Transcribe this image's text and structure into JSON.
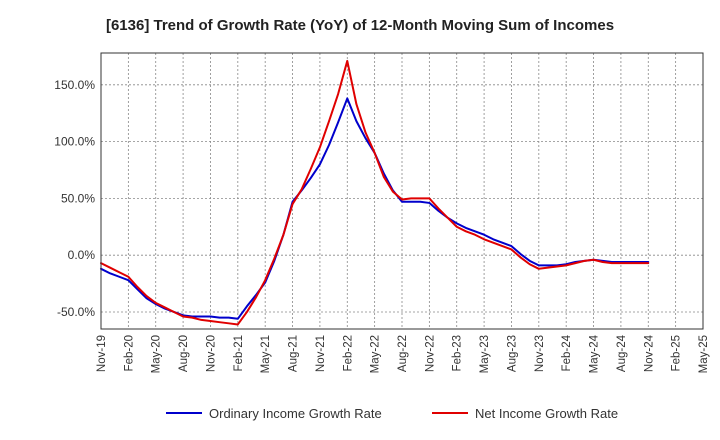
{
  "chart_data": {
    "type": "line",
    "title": "[6136]  Trend of Growth Rate (YoY) of 12-Month Moving Sum of Incomes",
    "xlabel": "",
    "ylabel": "",
    "x": [
      "Nov-19",
      "Dec-19",
      "Jan-20",
      "Feb-20",
      "Mar-20",
      "Apr-20",
      "May-20",
      "Jun-20",
      "Jul-20",
      "Aug-20",
      "Sep-20",
      "Oct-20",
      "Nov-20",
      "Dec-20",
      "Jan-21",
      "Feb-21",
      "Mar-21",
      "Apr-21",
      "May-21",
      "Jun-21",
      "Jul-21",
      "Aug-21",
      "Sep-21",
      "Oct-21",
      "Nov-21",
      "Dec-21",
      "Jan-22",
      "Feb-22",
      "Mar-22",
      "Apr-22",
      "May-22",
      "Jun-22",
      "Jul-22",
      "Aug-22",
      "Sep-22",
      "Oct-22",
      "Nov-22",
      "Dec-22",
      "Jan-23",
      "Feb-23",
      "Mar-23",
      "Apr-23",
      "May-23",
      "Jun-23",
      "Jul-23",
      "Aug-23",
      "Sep-23",
      "Oct-23",
      "Nov-23",
      "Dec-23",
      "Jan-24",
      "Feb-24",
      "Mar-24",
      "Apr-24",
      "May-24",
      "Jun-24",
      "Jul-24",
      "Aug-24",
      "Sep-24",
      "Oct-24",
      "Nov-24",
      "Dec-24",
      "Jan-25",
      "Feb-25",
      "Mar-25",
      "Apr-25",
      "May-25"
    ],
    "x_tick_labels": [
      "Nov-19",
      "Feb-20",
      "May-20",
      "Aug-20",
      "Nov-20",
      "Feb-21",
      "May-21",
      "Aug-21",
      "Nov-21",
      "Feb-22",
      "May-22",
      "Aug-22",
      "Nov-22",
      "Feb-23",
      "May-23",
      "Aug-23",
      "Nov-23",
      "Feb-24",
      "May-24",
      "Aug-24",
      "Nov-24",
      "Feb-25",
      "May-25"
    ],
    "ylim": [
      -65,
      178
    ],
    "y_ticks": [
      -50,
      0,
      50,
      100,
      150
    ],
    "y_tick_labels": [
      "-50.0%",
      "0.0%",
      "50.0%",
      "100.0%",
      "150.0%"
    ],
    "grid": true,
    "legend_position": "bottom",
    "series": [
      {
        "name": "Ordinary Income Growth Rate",
        "color": "#0000cc",
        "values": [
          -12,
          -16,
          -19,
          -22,
          -30,
          -38,
          -43,
          -47,
          -50,
          -53,
          -54,
          -54,
          -54,
          -55,
          -55,
          -56,
          -45,
          -35,
          -24,
          -5,
          18,
          47,
          57,
          68,
          80,
          97,
          117,
          138,
          118,
          103,
          90,
          72,
          57,
          47,
          47,
          47,
          46,
          39,
          33,
          28,
          24,
          21,
          18,
          14,
          11,
          8,
          1,
          -5,
          -9,
          -9,
          -9,
          -8,
          -6,
          -5,
          -4,
          -5,
          -6,
          -6,
          -6,
          -6,
          -6,
          null,
          null,
          null,
          null,
          null,
          null
        ]
      },
      {
        "name": "Net Income Growth Rate",
        "color": "#e00000",
        "values": [
          -7,
          -11,
          -15,
          -19,
          -28,
          -36,
          -42,
          -46,
          -50,
          -54,
          -55,
          -57,
          -58,
          -59,
          -60,
          -61,
          -50,
          -37,
          -22,
          -3,
          18,
          45,
          58,
          76,
          95,
          118,
          142,
          171,
          133,
          108,
          90,
          69,
          56,
          49,
          50,
          50,
          50,
          41,
          33,
          25,
          21,
          18,
          14,
          11,
          8,
          5,
          -2,
          -8,
          -12,
          -11,
          -10,
          -9,
          -7,
          -5,
          -4,
          -6,
          -7,
          -7,
          -7,
          -7,
          -7,
          null,
          null,
          null,
          null,
          null,
          null
        ]
      }
    ]
  }
}
